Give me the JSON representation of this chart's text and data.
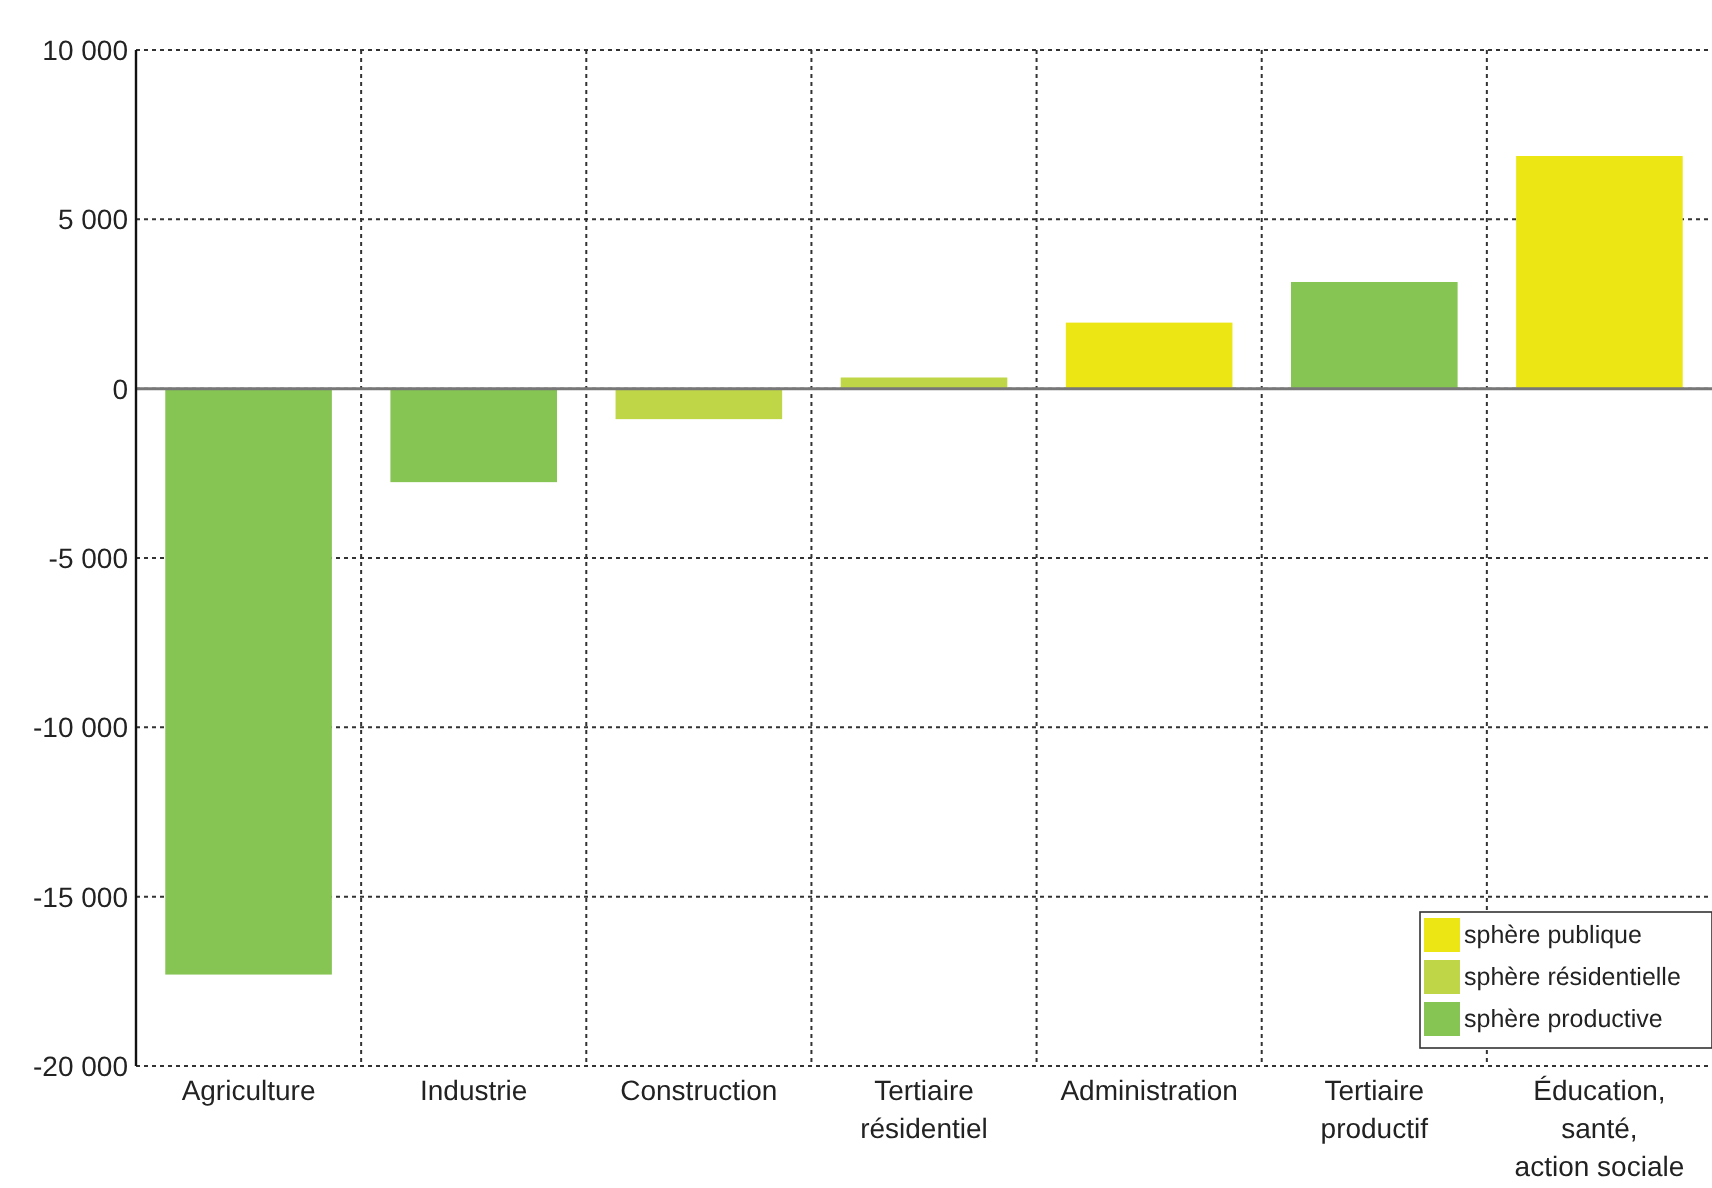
{
  "chart_data": {
    "type": "bar",
    "stacked": true,
    "categories": [
      "Agriculture",
      "Industrie",
      "Construction",
      "Tertiaire\nrésidentiel",
      "Administration",
      "Tertiaire\nproductif",
      "Éducation,\nsanté,\naction sociale"
    ],
    "series": [
      {
        "name": "sphère publique",
        "color": "#ece714",
        "values": [
          null,
          null,
          null,
          null,
          1950,
          null,
          6870
        ]
      },
      {
        "name": "sphère résidentielle",
        "color": "#bfd746",
        "values": [
          null,
          null,
          -900,
          330,
          null,
          null,
          null
        ]
      },
      {
        "name": "sphère productive",
        "color": "#86c553",
        "values": [
          -17300,
          -2760,
          null,
          null,
          null,
          3150,
          null
        ]
      }
    ],
    "ylim": [
      -20000,
      10000
    ],
    "yticks": [
      {
        "value": 10000,
        "label": "10 000"
      },
      {
        "value": 5000,
        "label": "5 000"
      },
      0,
      {
        "value": -5000,
        "label": "-5 000"
      },
      {
        "value": -10000,
        "label": "-10 000"
      },
      {
        "value": -15000,
        "label": "-15 000"
      },
      {
        "value": -20000,
        "label": "-20 000"
      }
    ],
    "grid": true,
    "legend": "bottom right"
  }
}
